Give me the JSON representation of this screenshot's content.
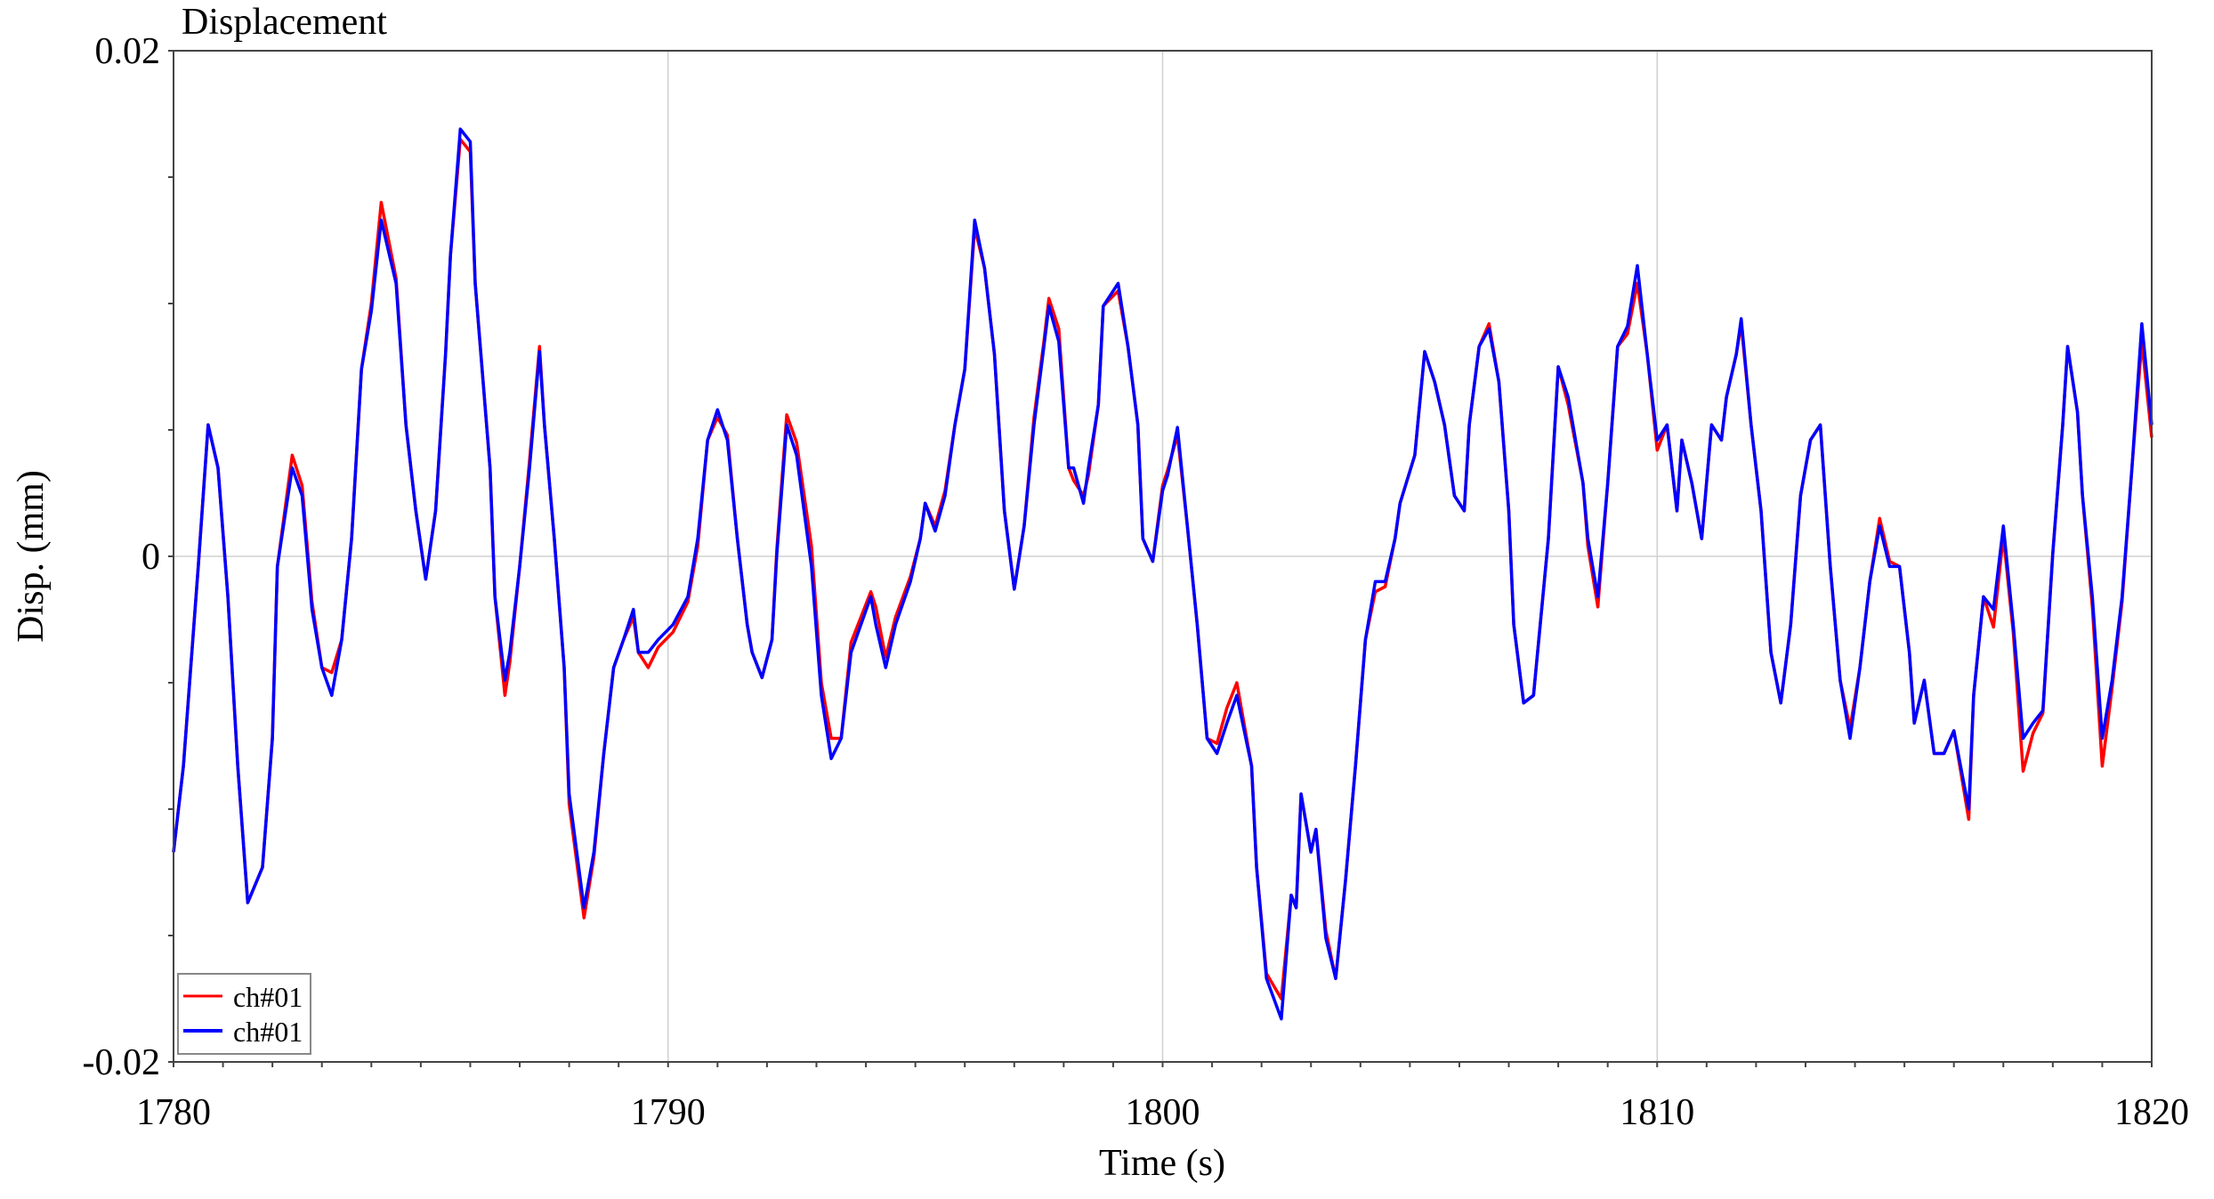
{
  "chart_data": {
    "type": "line",
    "title": "Displacement",
    "xlabel": "Time (s)",
    "ylabel": "Disp. (mm)",
    "xlim": [
      1780,
      1820
    ],
    "ylim": [
      -0.02,
      0.02
    ],
    "x_ticks": [
      1780,
      1790,
      1800,
      1810,
      1820
    ],
    "x_tick_labels": [
      "1780",
      "1790",
      "1800",
      "1810",
      "1820"
    ],
    "y_ticks": [
      -0.02,
      0,
      0.02
    ],
    "y_tick_labels": [
      "-0.02",
      "0",
      "0.02"
    ],
    "x_minor_step": 1,
    "y_minor_step": 0.005,
    "grid": true,
    "legend_position": "bottom-left",
    "x": [
      1780.0,
      1780.2,
      1780.5,
      1780.7,
      1780.9,
      1781.1,
      1781.3,
      1781.5,
      1781.8,
      1782.0,
      1782.1,
      1782.4,
      1782.6,
      1782.8,
      1783.0,
      1783.2,
      1783.4,
      1783.6,
      1783.8,
      1784.0,
      1784.2,
      1784.5,
      1784.7,
      1784.9,
      1785.1,
      1785.3,
      1785.5,
      1785.6,
      1785.8,
      1786.0,
      1786.1,
      1786.4,
      1786.5,
      1786.7,
      1786.8,
      1787.0,
      1787.2,
      1787.4,
      1787.5,
      1787.7,
      1787.9,
      1788.0,
      1788.3,
      1788.5,
      1788.7,
      1788.9,
      1789.1,
      1789.3,
      1789.4,
      1789.6,
      1789.8,
      1790.1,
      1790.4,
      1790.6,
      1790.8,
      1791.0,
      1791.2,
      1791.4,
      1791.6,
      1791.7,
      1791.9,
      1792.1,
      1792.2,
      1792.4,
      1792.6,
      1792.9,
      1793.1,
      1793.3,
      1793.5,
      1793.7,
      1793.9,
      1794.1,
      1794.2,
      1794.4,
      1794.6,
      1794.9,
      1795.1,
      1795.2,
      1795.4,
      1795.6,
      1795.8,
      1796.0,
      1796.2,
      1796.4,
      1796.6,
      1796.8,
      1797.0,
      1797.2,
      1797.4,
      1797.6,
      1797.7,
      1797.9,
      1798.1,
      1798.2,
      1798.4,
      1798.5,
      1798.7,
      1798.8,
      1799.1,
      1799.3,
      1799.5,
      1799.6,
      1799.8,
      1800.0,
      1800.1,
      1800.3,
      1800.5,
      1800.7,
      1800.9,
      1801.1,
      1801.3,
      1801.5,
      1801.8,
      1801.9,
      1802.1,
      1802.4,
      1802.6,
      1802.7,
      1802.8,
      1803.0,
      1803.1,
      1803.3,
      1803.5,
      1803.7,
      1803.9,
      1804.1,
      1804.3,
      1804.5,
      1804.7,
      1804.8,
      1805.1,
      1805.3,
      1805.5,
      1805.7,
      1805.9,
      1806.1,
      1806.2,
      1806.4,
      1806.6,
      1806.8,
      1807.0,
      1807.1,
      1807.3,
      1807.5,
      1807.8,
      1808.0,
      1808.2,
      1808.5,
      1808.6,
      1808.8,
      1809.0,
      1809.2,
      1809.4,
      1809.6,
      1809.8,
      1810.0,
      1810.2,
      1810.4,
      1810.5,
      1810.7,
      1810.9,
      1811.1,
      1811.3,
      1811.4,
      1811.6,
      1811.7,
      1811.9,
      1812.1,
      1812.3,
      1812.5,
      1812.7,
      1812.9,
      1813.1,
      1813.3,
      1813.5,
      1813.7,
      1813.9,
      1814.1,
      1814.3,
      1814.5,
      1814.7,
      1814.9,
      1815.1,
      1815.2,
      1815.4,
      1815.6,
      1815.8,
      1816.0,
      1816.3,
      1816.4,
      1816.6,
      1816.8,
      1817.0,
      1817.2,
      1817.4,
      1817.6,
      1817.8,
      1818.0,
      1818.2,
      1818.3,
      1818.5,
      1818.6,
      1818.8,
      1819.0,
      1819.2,
      1819.4,
      1819.6,
      1819.8,
      1820.0
    ],
    "series": [
      {
        "name": "ch#01",
        "color": "#ff0000",
        "values": [
          -0.0117,
          -0.0083,
          -0.0004,
          0.0052,
          0.0035,
          -0.0016,
          -0.0083,
          -0.0137,
          -0.0123,
          -0.0072,
          -0.0004,
          0.004,
          0.0028,
          -0.0018,
          -0.0044,
          -0.0046,
          -0.0033,
          0.0007,
          0.0074,
          0.01,
          0.014,
          0.011,
          0.0052,
          0.0018,
          -0.0009,
          0.0018,
          0.008,
          0.0119,
          0.0165,
          0.016,
          0.0108,
          0.0035,
          -0.0016,
          -0.0055,
          -0.0042,
          -0.0004,
          0.0038,
          0.0083,
          0.0052,
          0.0007,
          -0.0044,
          -0.0098,
          -0.0143,
          -0.0119,
          -0.0078,
          -0.0044,
          -0.0033,
          -0.0024,
          -0.0038,
          -0.0044,
          -0.0036,
          -0.003,
          -0.0018,
          0.0004,
          0.0046,
          0.0055,
          0.0048,
          0.0007,
          -0.0027,
          -0.0038,
          -0.0048,
          -0.0033,
          0.0003,
          0.0056,
          0.0045,
          0.0004,
          -0.005,
          -0.0072,
          -0.0072,
          -0.0034,
          -0.0024,
          -0.0014,
          -0.002,
          -0.004,
          -0.0024,
          -0.0008,
          0.0007,
          0.0021,
          0.0012,
          0.0026,
          0.0052,
          0.0074,
          0.013,
          0.0114,
          0.008,
          0.0018,
          -0.0013,
          0.0012,
          0.0055,
          0.0085,
          0.0102,
          0.009,
          0.0035,
          0.003,
          0.0024,
          0.0032,
          0.006,
          0.0099,
          0.0105,
          0.0083,
          0.0052,
          0.0007,
          -0.0002,
          0.0028,
          0.0034,
          0.0048,
          0.0012,
          -0.0027,
          -0.0072,
          -0.0074,
          -0.006,
          -0.005,
          -0.0083,
          -0.0123,
          -0.0165,
          -0.0175,
          -0.0134,
          -0.0139,
          -0.0094,
          -0.0117,
          -0.0108,
          -0.0148,
          -0.0167,
          -0.0128,
          -0.0083,
          -0.0033,
          -0.0014,
          -0.0012,
          0.0007,
          0.0021,
          0.004,
          0.0081,
          0.0069,
          0.0052,
          0.0024,
          0.0018,
          0.0052,
          0.0083,
          0.0092,
          0.0069,
          0.0018,
          -0.0027,
          -0.0058,
          -0.0055,
          0.0007,
          0.0075,
          0.006,
          0.0029,
          0.0004,
          -0.002,
          0.0029,
          0.0083,
          0.0088,
          0.0108,
          0.008,
          0.0042,
          0.0052,
          0.0018,
          0.0046,
          0.0029,
          0.0007,
          0.0052,
          0.0046,
          0.0063,
          0.008,
          0.0092,
          0.0052,
          0.0018,
          -0.0038,
          -0.0058,
          -0.0027,
          0.0024,
          0.0046,
          0.0052,
          -0.0004,
          -0.0049,
          -0.0068,
          -0.0044,
          -0.001,
          0.0015,
          -0.0002,
          -0.0004,
          -0.0038,
          -0.0066,
          -0.0049,
          -0.0078,
          -0.0078,
          -0.0069,
          -0.0104,
          -0.0055,
          -0.0016,
          -0.0028,
          0.0008,
          -0.003,
          -0.0085,
          -0.007,
          -0.0062,
          0.0001,
          0.0052,
          0.0083,
          0.0057,
          0.0024,
          -0.002,
          -0.0083,
          -0.0052,
          -0.0018,
          0.0035,
          0.0085,
          0.0047
        ]
      },
      {
        "name": "ch#01",
        "color": "#0000ff",
        "values": [
          -0.0117,
          -0.0083,
          -0.0004,
          0.0052,
          0.0035,
          -0.0016,
          -0.0083,
          -0.0137,
          -0.0123,
          -0.0072,
          -0.0004,
          0.0035,
          0.0024,
          -0.0021,
          -0.0044,
          -0.0055,
          -0.0033,
          0.0007,
          0.0074,
          0.0097,
          0.0133,
          0.0108,
          0.0052,
          0.0018,
          -0.0009,
          0.0018,
          0.008,
          0.0119,
          0.0169,
          0.0164,
          0.0108,
          0.0035,
          -0.0016,
          -0.0049,
          -0.0038,
          -0.0004,
          0.0035,
          0.0081,
          0.0052,
          0.0007,
          -0.0044,
          -0.0094,
          -0.0139,
          -0.0117,
          -0.0078,
          -0.0044,
          -0.0033,
          -0.0021,
          -0.0038,
          -0.0038,
          -0.0033,
          -0.0027,
          -0.0016,
          0.0007,
          0.0046,
          0.0058,
          0.0046,
          0.0007,
          -0.0027,
          -0.0038,
          -0.0048,
          -0.0033,
          0.0001,
          0.0052,
          0.004,
          -0.0004,
          -0.0055,
          -0.008,
          -0.0072,
          -0.0038,
          -0.0027,
          -0.0016,
          -0.0027,
          -0.0044,
          -0.0027,
          -0.001,
          0.0007,
          0.0021,
          0.001,
          0.0024,
          0.0052,
          0.0074,
          0.0133,
          0.0114,
          0.008,
          0.0018,
          -0.0013,
          0.0012,
          0.0052,
          0.0083,
          0.0099,
          0.0085,
          0.0035,
          0.0035,
          0.0021,
          0.0035,
          0.006,
          0.0099,
          0.0108,
          0.0083,
          0.0052,
          0.0007,
          -0.0002,
          0.0026,
          0.0032,
          0.0051,
          0.0012,
          -0.0027,
          -0.0072,
          -0.0078,
          -0.0066,
          -0.0055,
          -0.0083,
          -0.0123,
          -0.0167,
          -0.0183,
          -0.0134,
          -0.0139,
          -0.0094,
          -0.0117,
          -0.0108,
          -0.0151,
          -0.0167,
          -0.0128,
          -0.0083,
          -0.0033,
          -0.001,
          -0.001,
          0.0007,
          0.0021,
          0.004,
          0.0081,
          0.0069,
          0.0052,
          0.0024,
          0.0018,
          0.0052,
          0.0083,
          0.009,
          0.0069,
          0.0018,
          -0.0027,
          -0.0058,
          -0.0055,
          0.0007,
          0.0075,
          0.0063,
          0.0029,
          0.0007,
          -0.0016,
          0.0029,
          0.0083,
          0.0091,
          0.0115,
          0.008,
          0.0046,
          0.0052,
          0.0018,
          0.0046,
          0.0029,
          0.0007,
          0.0052,
          0.0046,
          0.0063,
          0.008,
          0.0094,
          0.0052,
          0.0018,
          -0.0038,
          -0.0058,
          -0.0027,
          0.0024,
          0.0046,
          0.0052,
          -0.0004,
          -0.0049,
          -0.0072,
          -0.0044,
          -0.001,
          0.0012,
          -0.0004,
          -0.0004,
          -0.0038,
          -0.0066,
          -0.0049,
          -0.0078,
          -0.0078,
          -0.0069,
          -0.01,
          -0.0055,
          -0.0016,
          -0.0021,
          0.0012,
          -0.0027,
          -0.0072,
          -0.0066,
          -0.0061,
          0.0001,
          0.0052,
          0.0083,
          0.0057,
          0.0024,
          -0.0016,
          -0.0072,
          -0.0049,
          -0.0016,
          0.0035,
          0.0092,
          0.0052
        ]
      }
    ]
  }
}
